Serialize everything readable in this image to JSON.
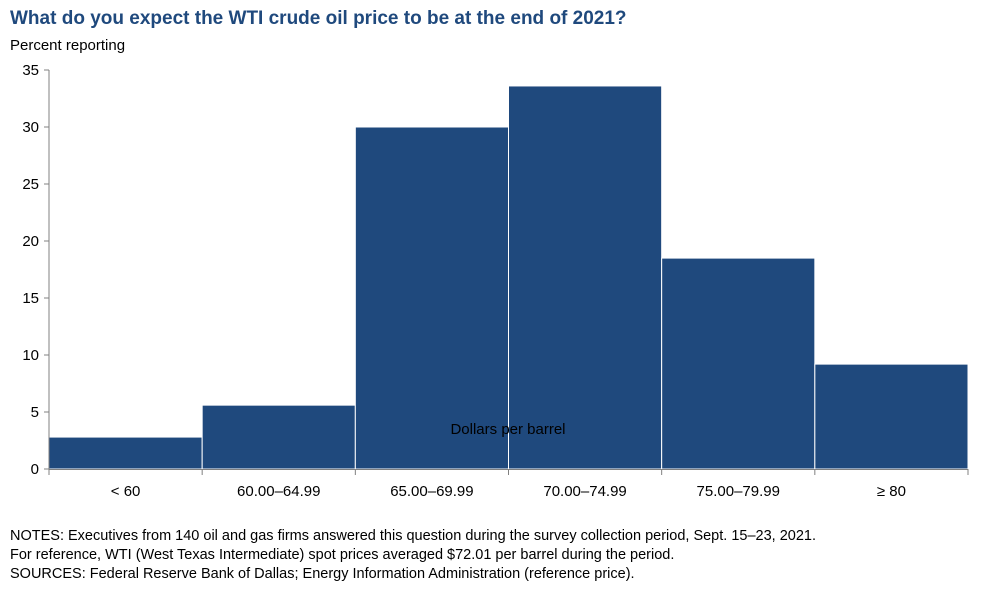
{
  "chart_data": {
    "type": "bar",
    "title": "What do you expect the WTI crude oil price to be at the end of 2021?",
    "ylabel": "Percent reporting",
    "xlabel": "Dollars per barrel",
    "categories": [
      "< 60",
      "60.00–64.99",
      "65.00–69.99",
      "70.00–74.99",
      "75.00–79.99",
      "≥ 80"
    ],
    "values": [
      2.8,
      5.6,
      30.0,
      33.6,
      18.5,
      9.2
    ],
    "ylim": [
      0,
      35
    ],
    "yticks": [
      0,
      5,
      10,
      15,
      20,
      25,
      30,
      35
    ],
    "grid": false,
    "legend": "none",
    "bar_color": "#1f497d"
  },
  "notes": {
    "line1": "NOTES: Executives from 140 oil and gas firms answered this question during the survey collection period, Sept. 15–23, 2021.",
    "line2": "For reference, WTI (West Texas Intermediate) spot prices averaged $72.01 per barrel during the period.",
    "line3": "SOURCES: Federal Reserve Bank of Dallas; Energy Information Administration (reference price)."
  }
}
